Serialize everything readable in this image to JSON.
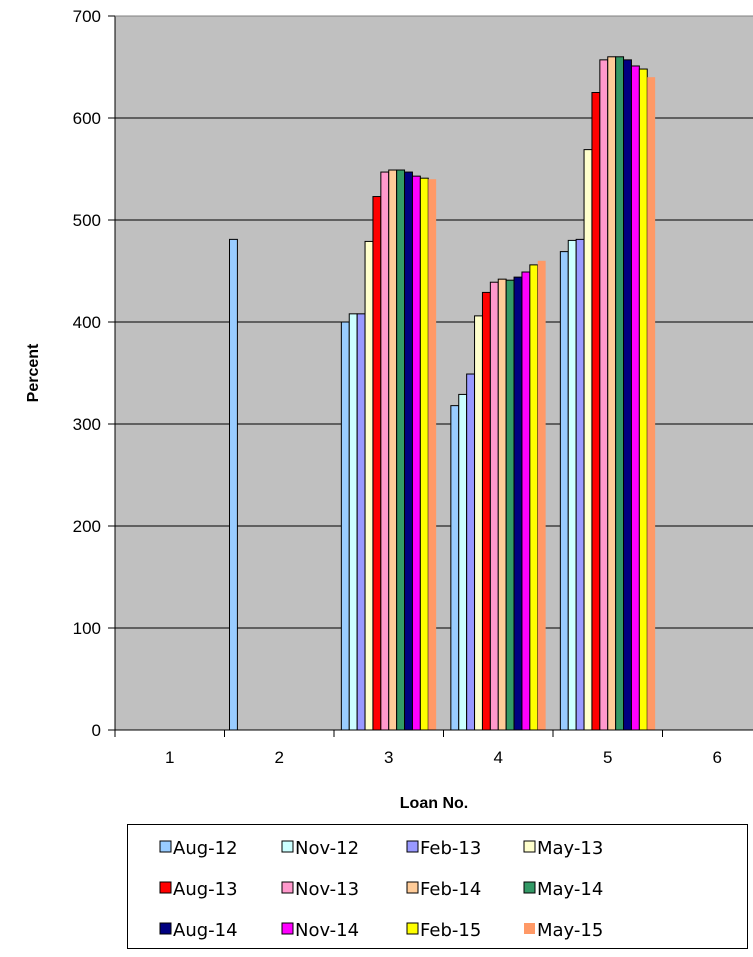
{
  "chart_data": {
    "type": "bar",
    "title": "",
    "xlabel": "Loan No.",
    "ylabel": "Percent",
    "ylim": [
      0,
      700
    ],
    "yticks": [
      "0",
      "100",
      "200",
      "300",
      "400",
      "500",
      "600",
      "700"
    ],
    "categories": [
      "1",
      "2",
      "3",
      "4",
      "5",
      "6"
    ],
    "grid": true,
    "legend_position": "bottom",
    "plot_background": "#c0c0c0",
    "series": [
      {
        "name": "Aug-12",
        "color": "#99ccff",
        "values": [
          null,
          481,
          400,
          318,
          469,
          null
        ]
      },
      {
        "name": "Nov-12",
        "color": "#ccffff",
        "values": [
          null,
          null,
          408,
          329,
          480,
          null
        ]
      },
      {
        "name": "Feb-13",
        "color": "#9999ff",
        "values": [
          null,
          null,
          408,
          349,
          481,
          null
        ]
      },
      {
        "name": "May-13",
        "color": "#ffffcc",
        "values": [
          null,
          null,
          479,
          406,
          569,
          null
        ]
      },
      {
        "name": "Aug-13",
        "color": "#ff0000",
        "values": [
          null,
          null,
          523,
          429,
          625,
          null
        ]
      },
      {
        "name": "Nov-13",
        "color": "#ff99cc",
        "values": [
          null,
          null,
          547,
          439,
          657,
          null
        ]
      },
      {
        "name": "Feb-14",
        "color": "#ffcc99",
        "values": [
          null,
          null,
          549,
          442,
          660,
          null
        ]
      },
      {
        "name": "May-14",
        "color": "#339966",
        "values": [
          null,
          null,
          549,
          441,
          660,
          null
        ]
      },
      {
        "name": "Aug-14",
        "color": "#000080",
        "values": [
          null,
          null,
          547,
          444,
          657,
          null
        ]
      },
      {
        "name": "Nov-14",
        "color": "#ff00ff",
        "values": [
          null,
          null,
          543,
          449,
          651,
          null
        ]
      },
      {
        "name": "Feb-15",
        "color": "#ffff00",
        "values": [
          null,
          null,
          541,
          456,
          648,
          null
        ]
      },
      {
        "name": "May-15",
        "color": "#ff9966",
        "values": [
          null,
          null,
          540,
          460,
          640,
          null
        ]
      }
    ]
  }
}
